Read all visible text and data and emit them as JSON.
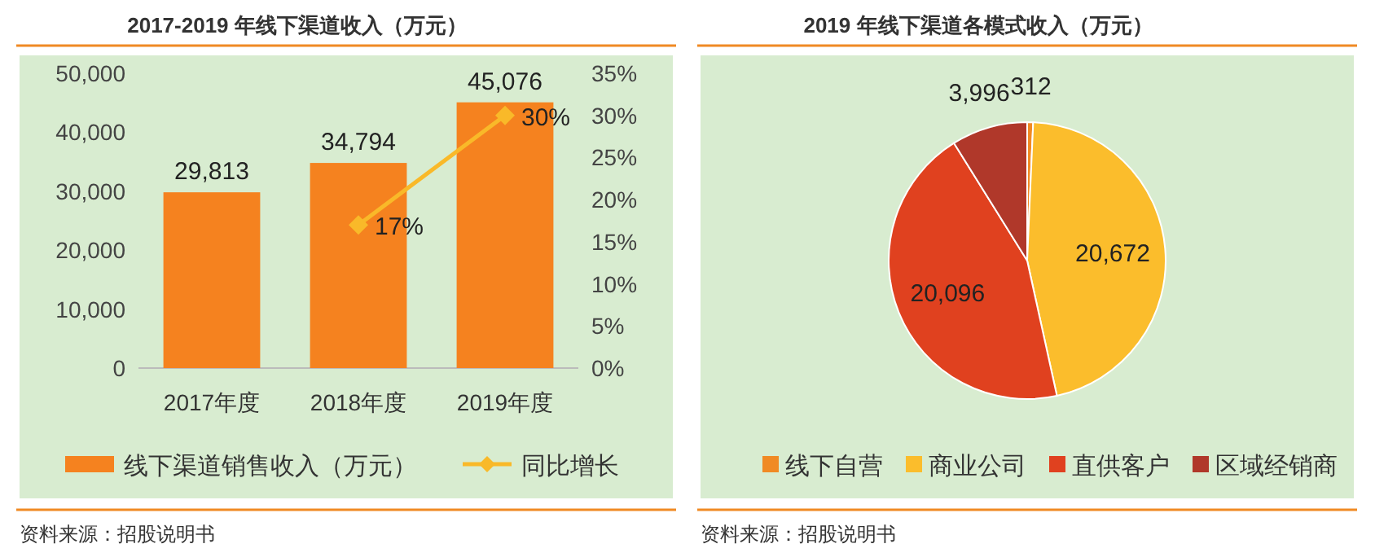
{
  "chart_data": [
    {
      "type": "bar",
      "title": "2017-2019 年线下渠道收入（万元）",
      "categories": [
        "2017年度",
        "2018年度",
        "2019年度"
      ],
      "series": [
        {
          "name": "线下渠道销售收入（万元）",
          "type": "bar",
          "color": "#f5821f",
          "values": [
            29813,
            34794,
            45076
          ],
          "value_labels": [
            "29,813",
            "34,794",
            "45,076"
          ]
        },
        {
          "name": "同比增长",
          "type": "line",
          "axis": "y2",
          "color": "#f9b929",
          "values": [
            null,
            17,
            30
          ],
          "value_labels": [
            null,
            "17%",
            "30%"
          ]
        }
      ],
      "ylim": [
        0,
        50000
      ],
      "yticks": [
        0,
        {
          "value": 10000,
          "label": "10,000"
        },
        {
          "value": 20000,
          "label": "20,000"
        },
        {
          "value": 30000,
          "label": "30,000"
        },
        {
          "value": 40000,
          "label": "40,000"
        },
        {
          "value": 50000,
          "label": "50,000"
        }
      ],
      "y2lim": [
        0,
        35
      ],
      "y2ticks": [
        {
          "value": 0,
          "label": "0%"
        },
        {
          "value": 5,
          "label": "5%"
        },
        {
          "value": 10,
          "label": "10%"
        },
        {
          "value": 15,
          "label": "15%"
        },
        {
          "value": 20,
          "label": "20%"
        },
        {
          "value": 25,
          "label": "25%"
        },
        {
          "value": 30,
          "label": "30%"
        },
        {
          "value": 35,
          "label": "35%"
        }
      ],
      "marker": "diamond",
      "legend": "bottom",
      "grid": false,
      "annotations": [
        "资料来源：招股说明书"
      ]
    },
    {
      "type": "pie",
      "title": "2019 年线下渠道各模式收入（万元）",
      "categories": [
        "线下自营",
        "商业公司",
        "直供客户",
        "区域经销商"
      ],
      "values": [
        312,
        20672,
        20096,
        3996
      ],
      "colors": [
        "#f08a24",
        "#fbbd2c",
        "#e0411f",
        "#b0382a"
      ],
      "value_labels": [
        "312",
        "20,672",
        "20,096",
        "3,996"
      ],
      "legend": "bottom",
      "annotations": [
        "资料来源：招股说明书"
      ]
    }
  ]
}
